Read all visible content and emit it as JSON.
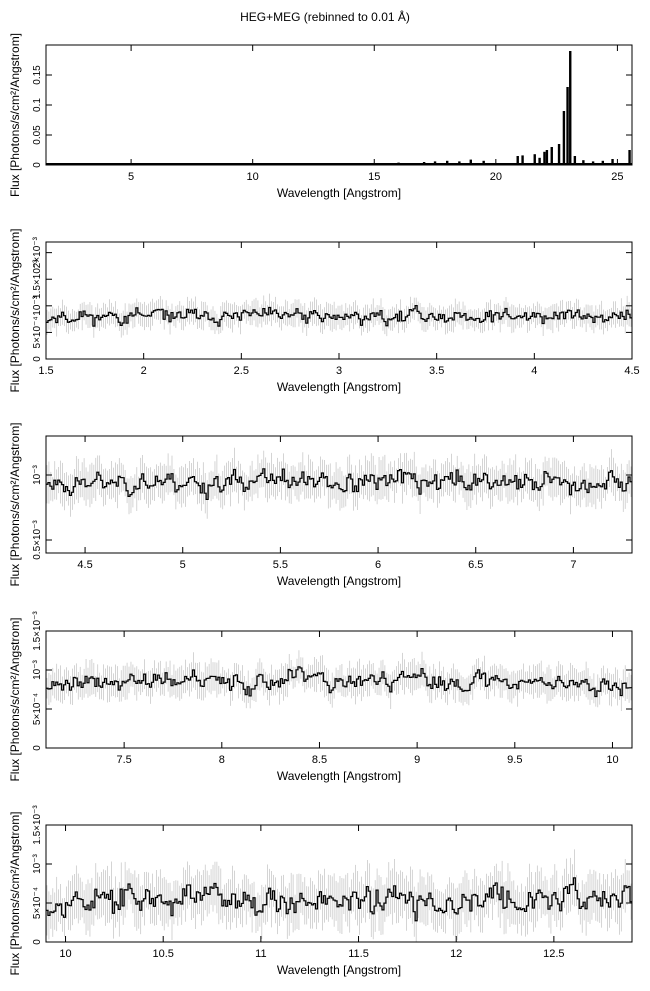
{
  "page_title": "HEG+MEG (rebinned to 0.01 Å)",
  "chart_data": [
    {
      "type": "line",
      "title": "",
      "xlabel": "Wavelength [Angstrom]",
      "ylabel": "Flux [Photons/s/cm²/Angstrom]",
      "xlim": [
        1.5,
        25.6
      ],
      "ylim": [
        0,
        0.2
      ],
      "xticks": [
        5,
        10,
        15,
        20,
        25
      ],
      "yticks": [
        0,
        0.05,
        0.1,
        0.15
      ],
      "ytick_labels": [
        "0",
        "0.05",
        "0.1",
        "0.15"
      ],
      "y_exponent_label": "",
      "continuum": 0.002,
      "series": [
        {
          "values_description": "emission lines",
          "lines": [
            {
              "x": 16.0,
              "y": 0.004
            },
            {
              "x": 17.05,
              "y": 0.005
            },
            {
              "x": 17.5,
              "y": 0.006
            },
            {
              "x": 18.0,
              "y": 0.007
            },
            {
              "x": 18.5,
              "y": 0.006
            },
            {
              "x": 18.97,
              "y": 0.009
            },
            {
              "x": 19.5,
              "y": 0.007
            },
            {
              "x": 20.9,
              "y": 0.015
            },
            {
              "x": 21.1,
              "y": 0.016
            },
            {
              "x": 21.6,
              "y": 0.018
            },
            {
              "x": 21.8,
              "y": 0.012
            },
            {
              "x": 22.0,
              "y": 0.022
            },
            {
              "x": 22.1,
              "y": 0.025
            },
            {
              "x": 22.3,
              "y": 0.03
            },
            {
              "x": 22.6,
              "y": 0.035
            },
            {
              "x": 22.8,
              "y": 0.09
            },
            {
              "x": 22.95,
              "y": 0.13
            },
            {
              "x": 23.06,
              "y": 0.19
            },
            {
              "x": 23.25,
              "y": 0.015
            },
            {
              "x": 23.6,
              "y": 0.008
            },
            {
              "x": 24.0,
              "y": 0.006
            },
            {
              "x": 24.4,
              "y": 0.007
            },
            {
              "x": 24.8,
              "y": 0.01
            },
            {
              "x": 25.5,
              "y": 0.025
            }
          ]
        }
      ]
    },
    {
      "type": "line",
      "title": "",
      "xlabel": "Wavelength [Angstrom]",
      "ylabel": "Flux [Photons/s/cm²/Angstrom]",
      "xlim": [
        1.5,
        4.5
      ],
      "ylim": [
        0,
        0.0022
      ],
      "xticks": [
        1.5,
        2,
        2.5,
        3,
        3.5,
        4,
        4.5
      ],
      "yticks": [
        0,
        0.0005,
        0.001,
        0.0015,
        0.002
      ],
      "ytick_labels": [
        "0",
        "5×10⁻⁴",
        "10⁻³",
        "1.5×10⁻³",
        "2×10⁻³"
      ],
      "level": 0.0008,
      "noise": 0.00016,
      "step": 0.01,
      "seed": 11
    },
    {
      "type": "line",
      "title": "",
      "xlabel": "Wavelength [Angstrom]",
      "ylabel": "Flux [Photons/s/cm²/Angstrom]",
      "xlim": [
        4.3,
        7.3
      ],
      "ylim": [
        0.0004,
        0.0013
      ],
      "xticks": [
        4.5,
        5,
        5.5,
        6,
        6.5,
        7
      ],
      "yticks": [
        0.0005,
        0.001
      ],
      "ytick_labels": [
        "0.5×10⁻³",
        "10⁻³"
      ],
      "level": 0.00095,
      "noise": 0.0001,
      "step": 0.01,
      "seed": 23
    },
    {
      "type": "line",
      "title": "",
      "xlabel": "Wavelength [Angstrom]",
      "ylabel": "Flux [Photons/s/cm²/Angstrom]",
      "xlim": [
        7.1,
        10.1
      ],
      "ylim": [
        0,
        0.0015
      ],
      "xticks": [
        7.5,
        8,
        8.5,
        9,
        9.5,
        10
      ],
      "yticks": [
        0,
        0.0005,
        0.001,
        0.0015
      ],
      "ytick_labels": [
        "0",
        "5×10⁻⁴",
        "10⁻³",
        "1.5×10⁻³"
      ],
      "level": 0.00085,
      "noise": 0.00014,
      "step": 0.01,
      "seed": 37
    },
    {
      "type": "line",
      "title": "",
      "xlabel": "Wavelength [Angstrom]",
      "ylabel": "Flux [Photons/s/cm²/Angstrom]",
      "xlim": [
        9.9,
        12.9
      ],
      "ylim": [
        0,
        0.0015
      ],
      "xticks": [
        10,
        10.5,
        11,
        11.5,
        12,
        12.5
      ],
      "yticks": [
        0,
        0.0005,
        0.001,
        0.0015
      ],
      "ytick_labels": [
        "0",
        "5×10⁻⁴",
        "10⁻³",
        "1.5×10⁻³"
      ],
      "level": 0.00055,
      "noise": 0.00022,
      "step": 0.01,
      "seed": 53
    }
  ]
}
